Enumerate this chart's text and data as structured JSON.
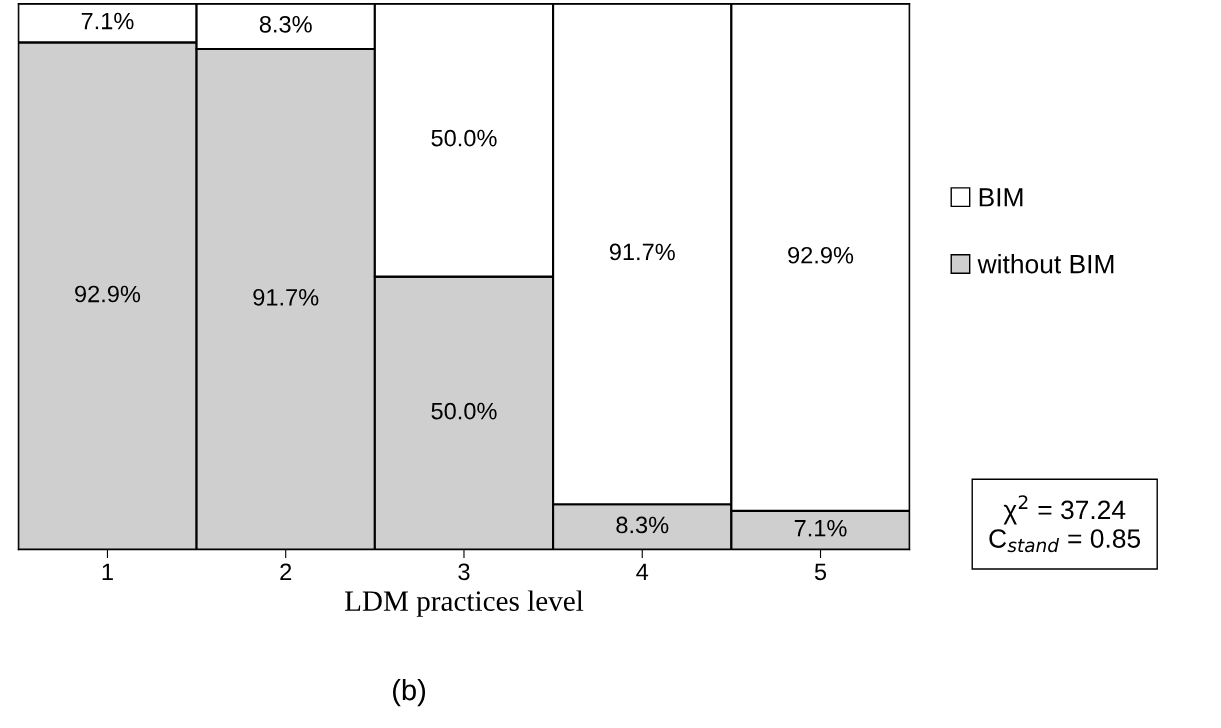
{
  "chart_data": {
    "type": "bar",
    "stacked": true,
    "categories": [
      "1",
      "2",
      "3",
      "4",
      "5"
    ],
    "series": [
      {
        "name": "without BIM",
        "color": "#cfcfcf",
        "values": [
          92.9,
          91.7,
          50.0,
          8.3,
          7.1
        ],
        "value_labels": [
          "92.9%",
          "91.7%",
          "50.0%",
          "8.3%",
          "7.1%"
        ]
      },
      {
        "name": "BIM",
        "color": "#ffffff",
        "values": [
          7.1,
          8.3,
          50.0,
          91.7,
          92.9
        ],
        "value_labels": [
          "7.1%",
          "8.3%",
          "50.0%",
          "91.7%",
          "92.9%"
        ]
      }
    ],
    "xlabel": "LDM practices level",
    "legend": "right",
    "tick_labels": "x",
    "grid": false,
    "annotations": [
      "χ$^{2}$ = 37.24\nC$_{stand}$ = 0.85",
      "(b)"
    ]
  }
}
